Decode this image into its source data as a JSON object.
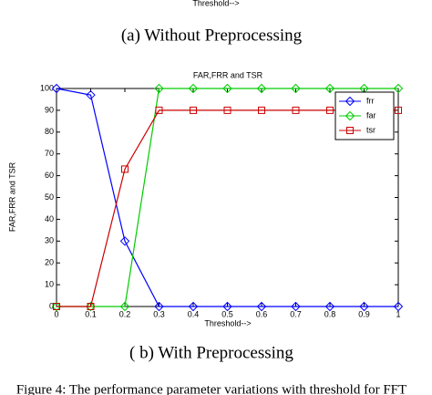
{
  "header_fragment": "Threshold-->",
  "caption_a": "(a)   Without Preprocessing",
  "chart_data": {
    "type": "line",
    "title": "FAR,FRR and TSR",
    "x_label": "Threshold-->",
    "y_label": "FAR,FRR and TSR",
    "x": [
      0,
      0.1,
      0.2,
      0.3,
      0.4,
      0.5,
      0.6,
      0.7,
      0.8,
      0.9,
      1
    ],
    "series": [
      {
        "name": "frr",
        "color": "#0000ff",
        "marker": "diamond",
        "values": [
          100,
          97,
          30,
          0,
          0,
          0,
          0,
          0,
          0,
          0,
          0
        ]
      },
      {
        "name": "far",
        "color": "#00cc00",
        "marker": "diamond",
        "values": [
          0,
          0,
          0,
          100,
          100,
          100,
          100,
          100,
          100,
          100,
          100
        ]
      },
      {
        "name": "tsr",
        "color": "#cc0000",
        "marker": "square",
        "values": [
          0,
          0,
          63,
          90,
          90,
          90,
          90,
          90,
          90,
          90,
          90
        ]
      }
    ],
    "xlim": [
      0,
      1
    ],
    "xticks": [
      0,
      0.1,
      0.2,
      0.3,
      0.4,
      0.5,
      0.6,
      0.7,
      0.8,
      0.9,
      1
    ],
    "ylim": [
      0,
      100
    ],
    "yticks": [
      0,
      10,
      20,
      30,
      40,
      50,
      60,
      70,
      80,
      90,
      100
    ],
    "grid": false,
    "legend": "upper right"
  },
  "caption_b": "( b) With Preprocessing",
  "footer_fragment": "Figure 4: The  performance parameter variations with  threshold for FFT"
}
